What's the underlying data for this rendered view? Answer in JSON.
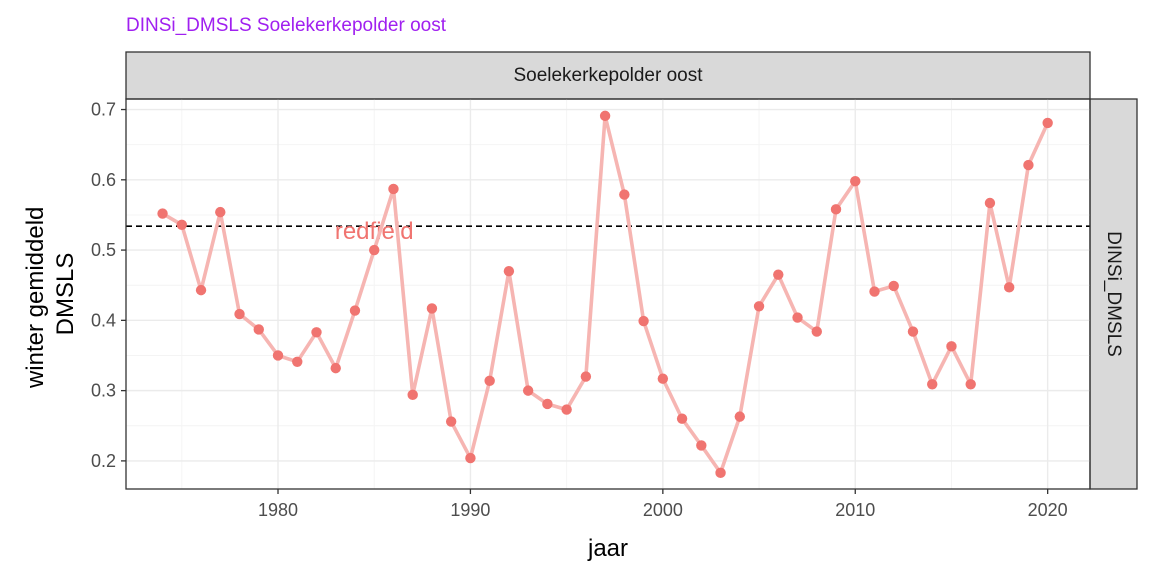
{
  "chart_data": {
    "type": "line",
    "title": "DINSi_DMSLS Soelekerkepolder oost",
    "facet_top": "Soelekerkepolder oost",
    "facet_right": "DINSi_DMSLS",
    "xlabel": "jaar",
    "ylabel": [
      "winter gemiddeld",
      "DMSLS"
    ],
    "xlim": [
      1972.1,
      2022.2
    ],
    "ylim": [
      0.16,
      0.715
    ],
    "x_ticks": [
      1980,
      1990,
      2000,
      2010,
      2020
    ],
    "y_ticks": [
      0.2,
      0.3,
      0.4,
      0.5,
      0.6,
      0.7
    ],
    "y_tick_labels": [
      "0.2",
      "0.3",
      "0.4",
      "0.5",
      "0.6",
      "0.7"
    ],
    "grid": true,
    "reference_line": {
      "y": 0.534,
      "label": "redfield",
      "style": "dashed",
      "label_x": 1985
    },
    "series": [
      {
        "color_line": "#f6b5b2",
        "color_point": "#f07470",
        "x": [
          1974,
          1975,
          1976,
          1977,
          1978,
          1979,
          1980,
          1981,
          1982,
          1983,
          1984,
          1985,
          1986,
          1987,
          1988,
          1989,
          1990,
          1991,
          1992,
          1993,
          1994,
          1995,
          1996,
          1997,
          1998,
          1999,
          2000,
          2001,
          2002,
          2003,
          2004,
          2005,
          2006,
          2007,
          2008,
          2009,
          2010,
          2011,
          2012,
          2013,
          2014,
          2015,
          2016,
          2017,
          2018,
          2019,
          2020
        ],
        "y": [
          0.552,
          0.536,
          0.443,
          0.554,
          0.409,
          0.387,
          0.35,
          0.341,
          0.383,
          0.332,
          0.414,
          0.5,
          0.587,
          0.294,
          0.417,
          0.256,
          0.204,
          0.314,
          0.47,
          0.3,
          0.281,
          0.273,
          0.32,
          0.691,
          0.579,
          0.399,
          0.317,
          0.26,
          0.222,
          0.183,
          0.263,
          0.42,
          0.465,
          0.404,
          0.384,
          0.558,
          0.598,
          0.441,
          0.449,
          0.384,
          0.309,
          0.363,
          0.309,
          0.567,
          0.447,
          0.621,
          0.681
        ]
      }
    ],
    "colors": {
      "title": "#a020f0",
      "redfield_label": "#f07470",
      "strip_fill": "#d9d9d9",
      "grid_major": "#ebebeb",
      "grid_minor": "#f4f4f4",
      "panel_border": "#333333"
    }
  }
}
